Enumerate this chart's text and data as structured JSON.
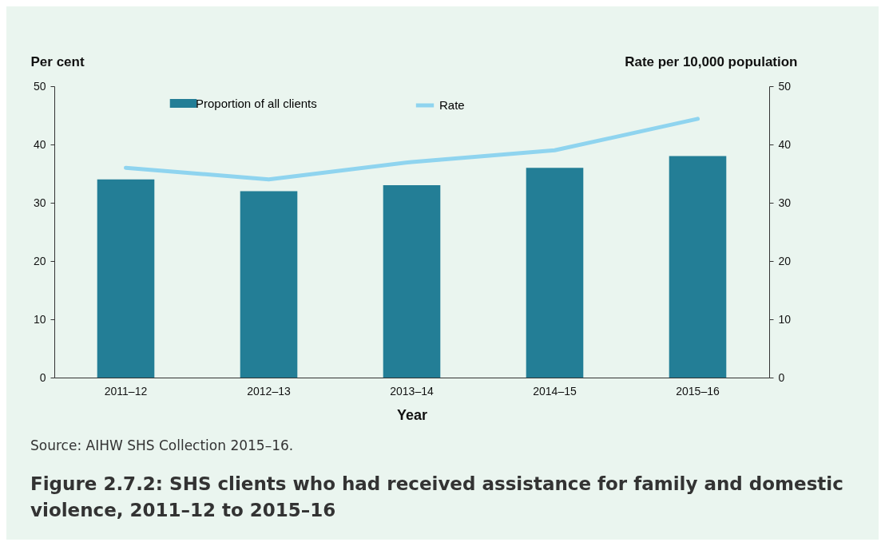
{
  "chart_data": {
    "type": "bar",
    "title": "Figure 2.7.2: SHS clients who had received assistance for family and domestic violence, 2011–12 to 2015–16",
    "xlabel": "Year",
    "ylabel": "Per cent",
    "y2label": "Rate per 10,000 population",
    "annotations": [
      "Source: AIHW SHS Collection 2015–16."
    ],
    "categories": [
      "2011–12",
      "2012–13",
      "2013–14",
      "2014–15",
      "2015–16"
    ],
    "series": [
      {
        "name": "Proportion of all clients",
        "color": "#237e96",
        "values": [
          34,
          32,
          33,
          36,
          38
        ]
      },
      {
        "name": "Rate",
        "type": "line",
        "axis": "y2",
        "color": "#8fd4ef",
        "values": [
          36,
          34,
          37,
          39,
          44.4
        ]
      }
    ],
    "ylim": [
      0,
      50
    ],
    "yticks": [
      0,
      10,
      20,
      30,
      40,
      50
    ],
    "y2lim": [
      0,
      50
    ],
    "y2ticks": [
      0,
      10,
      20,
      30,
      40,
      50
    ],
    "grid": false,
    "legend": "top"
  }
}
